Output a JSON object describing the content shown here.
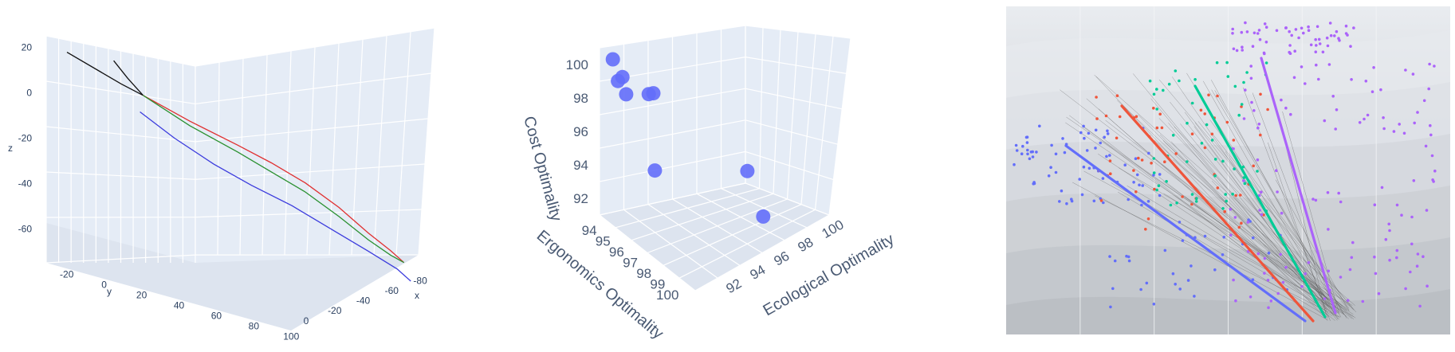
{
  "chart_data": [
    {
      "type": "line3d",
      "title": "",
      "axes": {
        "x": {
          "title": "x",
          "range": [
            -90,
            5
          ],
          "ticks": [
            "-80",
            "-60",
            "-40",
            "-20",
            "0"
          ]
        },
        "y": {
          "title": "y",
          "range": [
            -25,
            105
          ],
          "ticks": [
            "-20",
            "0",
            "20",
            "40",
            "60",
            "80",
            "100"
          ]
        },
        "z": {
          "title": "z",
          "range": [
            -75,
            25
          ],
          "ticks": [
            "20",
            "0",
            "-20",
            "-40",
            "-60"
          ]
        }
      },
      "series": [
        {
          "color": "#111111",
          "points": [
            [
              -5,
              -22,
              17
            ],
            [
              -10,
              3,
              8
            ],
            [
              -12,
              13,
              5
            ]
          ]
        },
        {
          "color": "#111111",
          "points": [
            [
              -5,
              3,
              19
            ],
            [
              -8,
              8,
              12
            ],
            [
              -12,
              13,
              5
            ]
          ]
        },
        {
          "color": "#e03030",
          "points": [
            [
              -12,
              13,
              5
            ],
            [
              -22,
              30,
              -4
            ],
            [
              -35,
              45,
              -13
            ],
            [
              -45,
              55,
              -20
            ],
            [
              -55,
              65,
              -28
            ],
            [
              -65,
              75,
              -38
            ],
            [
              -72,
              85,
              -48
            ],
            [
              -78,
              92,
              -55
            ],
            [
              -82,
              96,
              -60
            ]
          ]
        },
        {
          "color": "#2a9030",
          "points": [
            [
              -12,
              13,
              5
            ],
            [
              -22,
              30,
              -6
            ],
            [
              -35,
              45,
              -16
            ],
            [
              -45,
              55,
              -24
            ],
            [
              -55,
              65,
              -32
            ],
            [
              -65,
              75,
              -42
            ],
            [
              -72,
              85,
              -51
            ],
            [
              -78,
              92,
              -57
            ],
            [
              -82,
              96,
              -60
            ]
          ]
        },
        {
          "color": "#3b3bdd",
          "points": [
            [
              -10,
              13,
              -2
            ],
            [
              -18,
              25,
              -12
            ],
            [
              -28,
              38,
              -22
            ],
            [
              -38,
              50,
              -30
            ],
            [
              -50,
              62,
              -38
            ],
            [
              -62,
              75,
              -48
            ],
            [
              -72,
              85,
              -56
            ],
            [
              -80,
              94,
              -63
            ],
            [
              -84,
              98,
              -68
            ]
          ]
        }
      ]
    },
    {
      "type": "scatter3d",
      "title": "",
      "axes": {
        "x": {
          "title": "Ecological Optimality",
          "range": [
            90,
            101
          ],
          "ticks": [
            "92",
            "94",
            "96",
            "98",
            "100"
          ]
        },
        "y": {
          "title": "Ergonomics Optimality",
          "range": [
            93.5,
            100.5
          ],
          "ticks": [
            "94",
            "95",
            "96",
            "97",
            "98",
            "99",
            "100"
          ]
        },
        "z": {
          "title": "Cost Optimality",
          "range": [
            91,
            101
          ],
          "ticks": [
            "92",
            "94",
            "96",
            "98",
            "100"
          ]
        }
      },
      "marker_color": "#636efa",
      "points": [
        {
          "x": 91.0,
          "y": 93.6,
          "z": 100.2
        },
        {
          "x": 91.2,
          "y": 93.8,
          "z": 99.0
        },
        {
          "x": 91.8,
          "y": 93.6,
          "z": 99.0
        },
        {
          "x": 92.0,
          "y": 93.7,
          "z": 98.0
        },
        {
          "x": 94.0,
          "y": 93.6,
          "z": 97.6
        },
        {
          "x": 94.5,
          "y": 93.5,
          "z": 97.5
        },
        {
          "x": 92.0,
          "y": 95.8,
          "z": 94.8
        },
        {
          "x": 99.5,
          "y": 96.0,
          "z": 93.6
        },
        {
          "x": 99.0,
          "y": 97.6,
          "z": 92.0
        }
      ]
    },
    {
      "type": "scatter",
      "title": "",
      "axes_visible": false,
      "background": "contour",
      "groups": [
        {
          "color": "#636efa"
        },
        {
          "color": "#ef553b"
        },
        {
          "color": "#00cc96"
        },
        {
          "color": "#ab63fa"
        }
      ]
    }
  ]
}
